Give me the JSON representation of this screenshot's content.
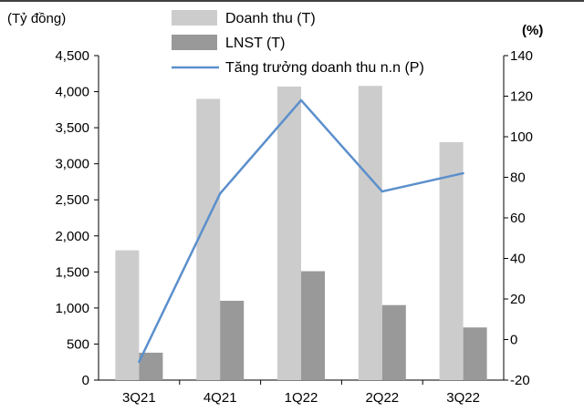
{
  "chart_data": {
    "type": "bar+line",
    "categories": [
      "3Q21",
      "4Q21",
      "1Q22",
      "2Q22",
      "3Q22"
    ],
    "y_left": {
      "unit_label": "(Tỷ đồng)",
      "range": [
        0,
        4500
      ],
      "ticks": [
        "0",
        "500",
        "1,000",
        "1,500",
        "2,000",
        "2,500",
        "3,000",
        "3,500",
        "4,000",
        "4,500"
      ]
    },
    "y_right": {
      "unit_label": "(%)",
      "range": [
        -20,
        140
      ],
      "ticks": [
        "-20",
        "0",
        "20",
        "40",
        "60",
        "80",
        "100",
        "120",
        "140"
      ]
    },
    "series": [
      {
        "name": "Doanh thu (T)",
        "kind": "bar",
        "axis": "left",
        "color": "#cccccc",
        "values": [
          1800,
          3900,
          4070,
          4080,
          3300
        ]
      },
      {
        "name": "LNST (T)",
        "kind": "bar",
        "axis": "left",
        "color": "#999999",
        "values": [
          380,
          1100,
          1510,
          1040,
          730
        ]
      },
      {
        "name": "Tăng trưởng doanh thu n.n (P)",
        "kind": "line",
        "axis": "right",
        "color": "#5b8fcc",
        "values": [
          -11,
          72,
          118,
          73,
          82
        ]
      }
    ],
    "legend": "top-center",
    "grid": false
  }
}
